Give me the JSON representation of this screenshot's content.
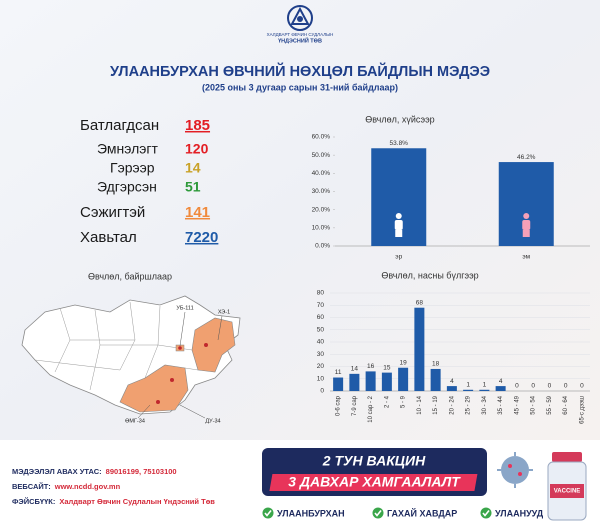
{
  "header": {
    "org": [
      "ХАЛДВАРТ ӨВЧИН СУДЛАЛЫН",
      "ҮНДЭСНИЙ ТӨВ"
    ],
    "title": "УЛААНБУРХАН ӨВЧНИЙ НӨХЦӨЛ БАЙДЛЫН МЭДЭЭ",
    "subtitle": "(2025 оны 3 дугаар сарын 31-ний байдлаар)"
  },
  "stats": [
    {
      "label": "Батлагдсан",
      "value": 185,
      "color": "#e31e24",
      "underline": true
    },
    {
      "label": "Эмнэлэгт",
      "value": 120,
      "color": "#e31e24",
      "underline": false
    },
    {
      "label": "Гэрээр",
      "value": 14,
      "color": "#c9a227",
      "underline": false
    },
    {
      "label": "Эдгэрсэн",
      "value": 51,
      "color": "#2e9a3a",
      "underline": false
    },
    {
      "label": "Сэжигтэй",
      "value": 141,
      "color": "#f08a3c",
      "underline": true
    },
    {
      "label": "Хавьтал",
      "value": 7220,
      "color": "#1f5ba8",
      "underline": true
    }
  ],
  "map": {
    "title": "Өвчлөл, байршлаар",
    "labels": [
      "УБ-111",
      "ХЭ-1",
      "ӨМГ-34",
      "ДУ-34"
    ]
  },
  "chart_data": [
    {
      "type": "bar",
      "title": "Өвчлөл, хүйсээр",
      "categories": [
        "эр",
        "эм"
      ],
      "values": [
        53.8,
        46.2
      ],
      "value_labels": [
        "53.8%",
        "46.2%"
      ],
      "color": "#1f5ba8",
      "ylim": [
        0,
        60
      ],
      "yticks": [
        {
          "value": 0,
          "label": "0.0%"
        },
        {
          "value": 10,
          "label": "10.0%"
        },
        {
          "value": 20,
          "label": "20.0%"
        },
        {
          "value": 30,
          "label": "30.0%"
        },
        {
          "value": 40,
          "label": "40.0%"
        },
        {
          "value": 50,
          "label": "50.0%"
        },
        {
          "value": 60,
          "label": "60.0%"
        }
      ],
      "grid": false
    },
    {
      "type": "bar",
      "title": "Өвчлөл, насны бүлгээр",
      "categories": [
        "0-6 сар",
        "7-9 сар",
        "10 сар - 2",
        "2 - 4",
        "5 - 9",
        "10 - 14",
        "15 - 19",
        "20 - 24",
        "25 - 29",
        "30 - 34",
        "35 - 44",
        "45 - 49",
        "50 - 54",
        "55 - 59",
        "60 - 64",
        "65-с дээш"
      ],
      "values": [
        11,
        14,
        16,
        15,
        19,
        68,
        18,
        4,
        1,
        1,
        4,
        0,
        0,
        0,
        0,
        0
      ],
      "color": "#1f5ba8",
      "ylim": [
        0,
        80
      ],
      "yticks": [
        0,
        10,
        20,
        30,
        40,
        50,
        60,
        70,
        80
      ],
      "grid": true
    }
  ],
  "footer": {
    "contacts": [
      {
        "label": "МЭДЭЭЛЭЛ АВАХ УТАС:",
        "value": "89016199,  75103100"
      },
      {
        "label": "ВЕБСАЙТ:",
        "value": "www.ncdd.gov.mn"
      },
      {
        "label": "ФЭЙСБҮҮК:",
        "value": "Халдварт Өвчин Судлалын Үндэсний Төв"
      }
    ],
    "banner": [
      "2 ТУН ВАКЦИН",
      "3 ДАВХАР ХАМГААЛАЛТ"
    ],
    "checks": [
      "УЛААНБУРХАН",
      "ГАХАЙ ХАВДАР",
      "УЛААНУУД"
    ],
    "vaccine": "VACCINE"
  }
}
